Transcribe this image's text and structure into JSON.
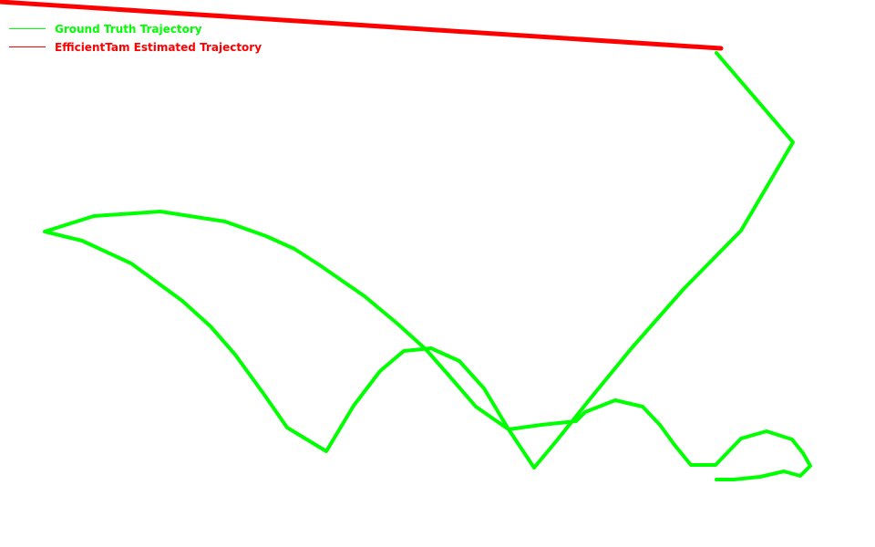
{
  "chart_data": {
    "type": "line",
    "title": "",
    "xlabel": "",
    "ylabel": "",
    "grid": false,
    "legend_placement": "top-left",
    "series": [
      {
        "name": "Ground Truth Trajectory",
        "color": "#00ff00",
        "points": [
          [
            786,
            526
          ],
          [
            805,
            526
          ],
          [
            834,
            523
          ],
          [
            860,
            517
          ],
          [
            878,
            522
          ],
          [
            889,
            511
          ],
          [
            881,
            497
          ],
          [
            869,
            482
          ],
          [
            841,
            473
          ],
          [
            813,
            481
          ],
          [
            785,
            510
          ],
          [
            758,
            510
          ],
          [
            740,
            488
          ],
          [
            724,
            466
          ],
          [
            705,
            446
          ],
          [
            675,
            439
          ],
          [
            642,
            452
          ],
          [
            632,
            462
          ],
          [
            594,
            466
          ],
          [
            558,
            471
          ],
          [
            531,
            426
          ],
          [
            504,
            396
          ],
          [
            473,
            382
          ],
          [
            443,
            385
          ],
          [
            417,
            407
          ],
          [
            388,
            445
          ],
          [
            358,
            495
          ],
          [
            315,
            469
          ],
          [
            290,
            433
          ],
          [
            258,
            389
          ],
          [
            231,
            358
          ],
          [
            200,
            330
          ],
          [
            144,
            289
          ],
          [
            90,
            264
          ],
          [
            49,
            254
          ],
          [
            103,
            237
          ],
          [
            176,
            232
          ],
          [
            247,
            243
          ],
          [
            292,
            259
          ],
          [
            323,
            273
          ],
          [
            351,
            291
          ],
          [
            400,
            325
          ],
          [
            436,
            355
          ],
          [
            467,
            383
          ],
          [
            490,
            409
          ],
          [
            522,
            446
          ],
          [
            558,
            471
          ],
          [
            586,
            513
          ],
          [
            611,
            483
          ],
          [
            647,
            438
          ],
          [
            692,
            383
          ],
          [
            750,
            317
          ],
          [
            813,
            253
          ],
          [
            870,
            156
          ],
          [
            786,
            58
          ]
        ]
      },
      {
        "name": "EfficientTam Estimated Trajectory",
        "color": "#ff0000",
        "points": [
          [
            0,
            2
          ],
          [
            791,
            53
          ]
        ]
      }
    ]
  }
}
